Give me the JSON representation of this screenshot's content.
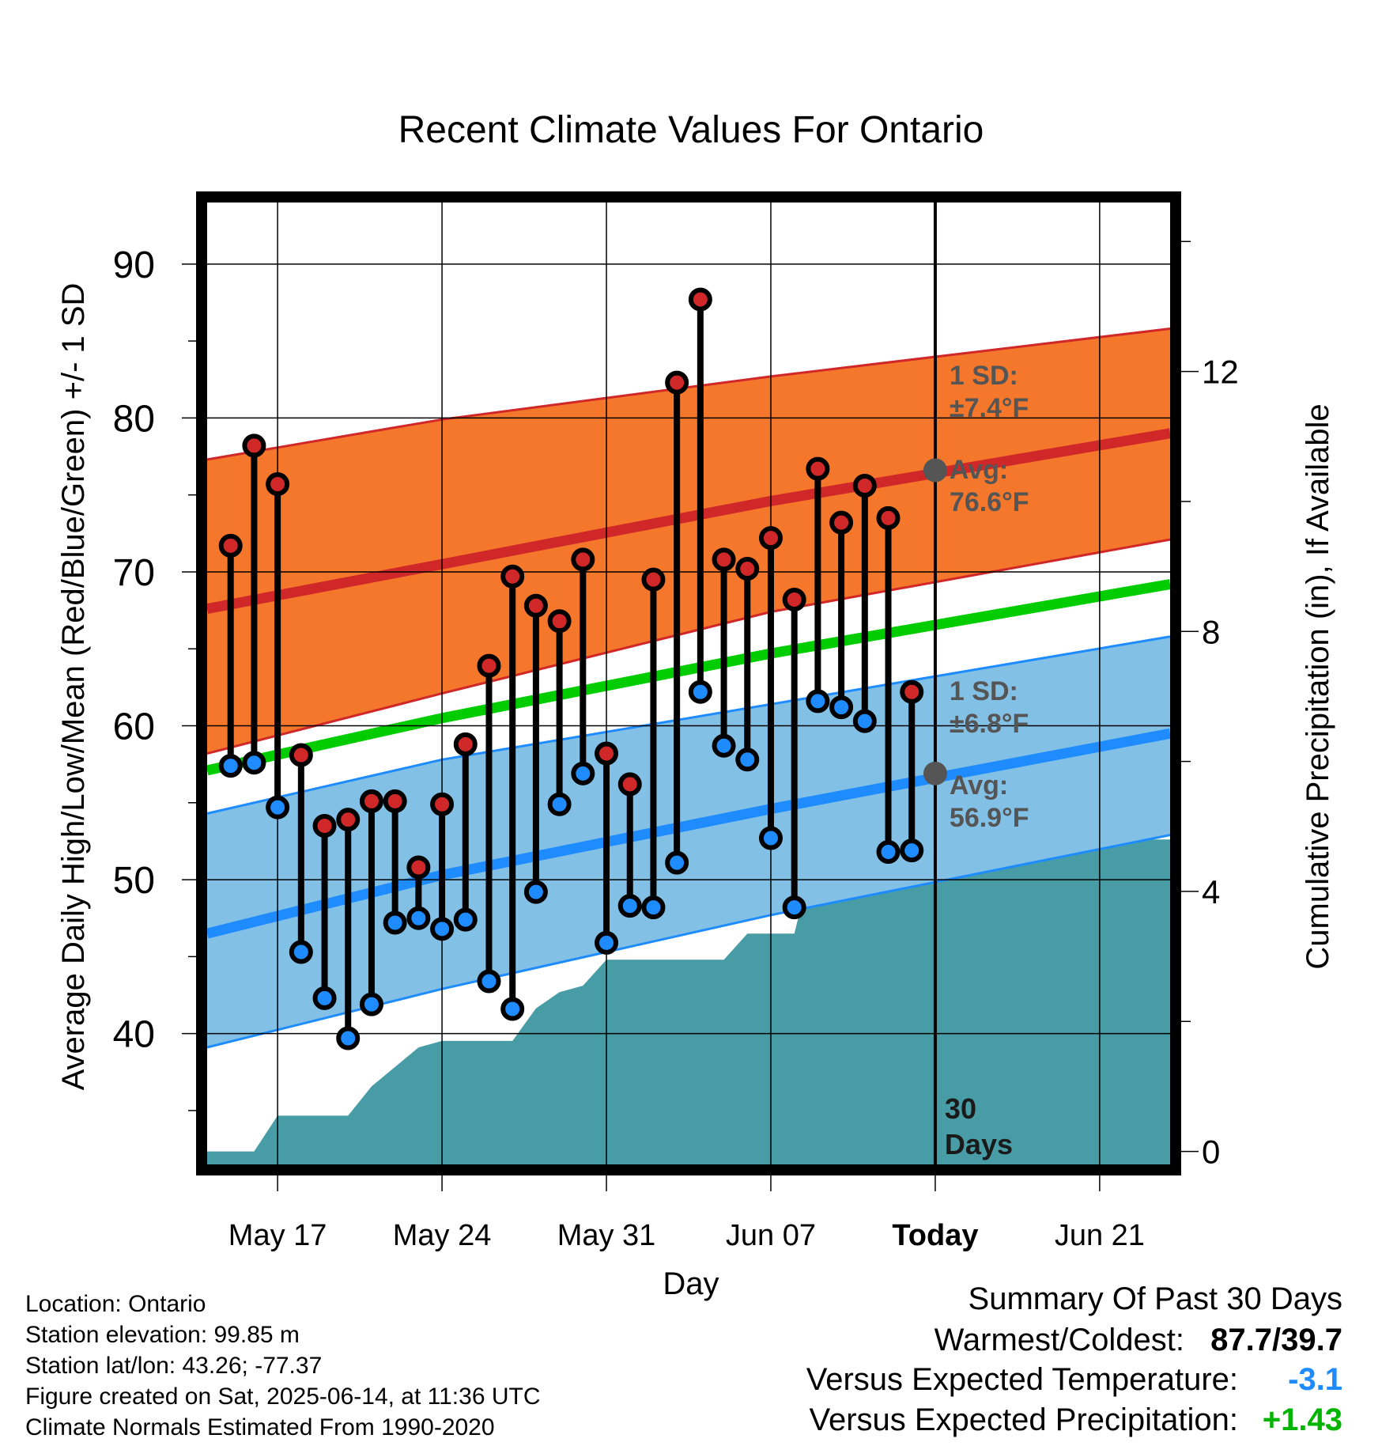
{
  "chart_data": {
    "type": "line",
    "title": "Recent Climate Values For Ontario",
    "xlabel": "Day",
    "ylabel": "Average Daily High/Low/Mean (Red/Blue/Green) +/- 1 SD",
    "y2label": "Cumulative Precipitation (in), If Available",
    "x_ticks": [
      "May 17",
      "May 24",
      "May 31",
      "Jun 07",
      "Today",
      "Jun 21"
    ],
    "x_tick_days": [
      "2025-05-17",
      "2025-05-24",
      "2025-05-31",
      "2025-06-07",
      "2025-06-14",
      "2025-06-21"
    ],
    "xlim": [
      "2025-05-14",
      "2025-06-24"
    ],
    "ylim": [
      31.5,
      94
    ],
    "y_ticks": [
      40,
      50,
      60,
      70,
      80,
      90
    ],
    "y2lim": [
      -0.2,
      14.6
    ],
    "y2_ticks": [
      0,
      4,
      8,
      12
    ],
    "grid": true,
    "today_label": "Today",
    "period_label": [
      "30",
      "Days"
    ],
    "normal_high": {
      "x": [
        "2025-05-14",
        "2025-05-24",
        "2025-06-07",
        "2025-06-24"
      ],
      "avg": [
        67.6,
        70.5,
        74.6,
        79.0
      ],
      "upper": [
        77.3,
        79.9,
        82.7,
        85.8
      ],
      "lower": [
        58.2,
        62.1,
        67.4,
        72.1
      ],
      "sd_label": "1 SD:",
      "sd_value": "±7.4°F",
      "avg_label": "Avg:",
      "avg_value": "76.6°F"
    },
    "normal_low": {
      "x": [
        "2025-05-14",
        "2025-05-24",
        "2025-06-07",
        "2025-06-24"
      ],
      "avg": [
        46.5,
        50.3,
        54.6,
        59.5
      ],
      "upper": [
        54.3,
        57.8,
        61.4,
        65.8
      ],
      "lower": [
        39.1,
        42.9,
        47.7,
        52.9
      ],
      "sd_label": "1 SD:",
      "sd_value": "±6.8°F",
      "avg_label": "Avg:",
      "avg_value": "56.9°F"
    },
    "normal_mean": {
      "x": [
        "2025-05-14",
        "2025-05-24",
        "2025-06-07",
        "2025-06-24"
      ],
      "values": [
        57.1,
        60.5,
        64.7,
        69.2
      ]
    },
    "series": [
      {
        "name": "High",
        "x": [
          "2025-05-15",
          "2025-05-16",
          "2025-05-17",
          "2025-05-18",
          "2025-05-19",
          "2025-05-20",
          "2025-05-21",
          "2025-05-22",
          "2025-05-23",
          "2025-05-24",
          "2025-05-25",
          "2025-05-26",
          "2025-05-27",
          "2025-05-28",
          "2025-05-29",
          "2025-05-30",
          "2025-05-31",
          "2025-06-01",
          "2025-06-02",
          "2025-06-03",
          "2025-06-04",
          "2025-06-05",
          "2025-06-06",
          "2025-06-07",
          "2025-06-08",
          "2025-06-09",
          "2025-06-10",
          "2025-06-11",
          "2025-06-12",
          "2025-06-13"
        ],
        "values": [
          71.7,
          78.2,
          75.7,
          58.1,
          53.5,
          53.9,
          55.1,
          55.1,
          50.8,
          54.9,
          58.8,
          63.9,
          69.7,
          67.8,
          66.8,
          70.8,
          58.2,
          56.2,
          69.5,
          82.3,
          87.7,
          70.8,
          70.2,
          72.2,
          68.2,
          76.7,
          73.2,
          75.6,
          73.5,
          62.2
        ]
      },
      {
        "name": "Low",
        "x": [
          "2025-05-15",
          "2025-05-16",
          "2025-05-17",
          "2025-05-18",
          "2025-05-19",
          "2025-05-20",
          "2025-05-21",
          "2025-05-22",
          "2025-05-23",
          "2025-05-24",
          "2025-05-25",
          "2025-05-26",
          "2025-05-27",
          "2025-05-28",
          "2025-05-29",
          "2025-05-30",
          "2025-05-31",
          "2025-06-01",
          "2025-06-02",
          "2025-06-03",
          "2025-06-04",
          "2025-06-05",
          "2025-06-06",
          "2025-06-07",
          "2025-06-08",
          "2025-06-09",
          "2025-06-10",
          "2025-06-11",
          "2025-06-12",
          "2025-06-13"
        ],
        "values": [
          57.4,
          57.6,
          54.7,
          45.3,
          42.3,
          39.7,
          41.9,
          47.2,
          47.5,
          46.8,
          47.4,
          43.4,
          41.6,
          49.2,
          54.9,
          56.9,
          45.9,
          48.3,
          48.2,
          51.1,
          62.2,
          58.7,
          57.8,
          52.7,
          48.2,
          61.6,
          61.2,
          60.3,
          51.8,
          51.9
        ]
      },
      {
        "name": "Cumulative Precipitation",
        "axis": "right",
        "x": [
          "2025-05-14",
          "2025-05-16",
          "2025-05-17",
          "2025-05-20",
          "2025-05-21",
          "2025-05-22",
          "2025-05-23",
          "2025-05-24",
          "2025-05-25",
          "2025-05-26",
          "2025-05-27",
          "2025-05-28",
          "2025-05-29",
          "2025-05-30",
          "2025-05-31",
          "2025-06-01",
          "2025-06-02",
          "2025-06-03",
          "2025-06-04",
          "2025-06-05",
          "2025-06-06",
          "2025-06-07",
          "2025-06-08",
          "2025-06-09",
          "2025-06-10",
          "2025-06-14",
          "2025-06-24"
        ],
        "values": [
          0,
          0,
          0.55,
          0.55,
          1.0,
          1.3,
          1.6,
          1.7,
          1.7,
          1.7,
          1.7,
          2.2,
          2.45,
          2.55,
          2.95,
          2.95,
          2.95,
          2.95,
          2.95,
          2.95,
          3.35,
          3.35,
          3.35,
          4.8,
          4.8,
          4.8,
          4.8
        ]
      }
    ]
  },
  "footer": {
    "location": "Location: Ontario",
    "elevation": "Station elevation: 99.85 m",
    "latlon": "Station lat/lon: 43.26; -77.37",
    "created": "Figure created on Sat, 2025-06-14, at 11:36 UTC",
    "normals": "Climate Normals Estimated From 1990-2020"
  },
  "summary": {
    "title": "Summary Of Past 30 Days",
    "warm_cold_label": "Warmest/Coldest:",
    "warm_cold_value": "87.7/39.7",
    "temp_label": "Versus Expected Temperature:",
    "temp_value": "-3.1",
    "precip_label": "Versus Expected Precipitation:",
    "precip_value": "+1.43"
  },
  "colors": {
    "high_band": "#f4772c",
    "high_line": "#d02828",
    "low_band": "#82c0e6",
    "low_line": "#1e8cff",
    "mean_line": "#00cc00",
    "precip_fill": "#479ca5",
    "annotation": "#555555",
    "high_dot": "#d02828",
    "low_dot": "#1e8cff",
    "temp_value": "#1e8cff",
    "precip_value": "#00b400"
  }
}
